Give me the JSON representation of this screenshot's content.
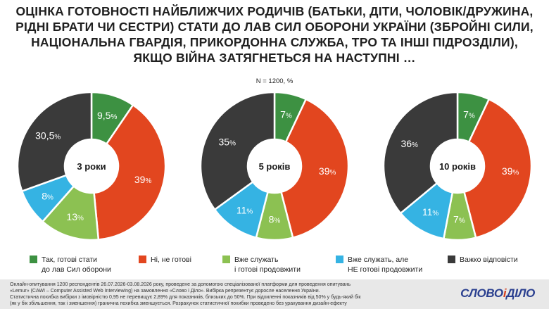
{
  "title_lines": [
    "ОЦІНКА ГОТОВНОСТІ НАЙБЛИЖЧИХ РОДИЧІВ (БАТЬКИ, ДІТИ, ЧОЛОВІК/ДРУЖИНА,",
    "РІДНІ БРАТИ ЧИ СЕСТРИ) СТАТИ ДО ЛАВ СИЛ ОБОРОНИ УКРАЇНИ (ЗБРОЙНІ СИЛИ,",
    "НАЦІОНАЛЬНА ГВАРДІЯ, ПРИКОРДОННА СЛУЖБА, ТРО ТА ІНШІ ПІДРОЗДІЛИ),",
    "ЯКЩО ВІЙНА ЗАТЯГНЕТЬСЯ НА НАСТУПНІ …"
  ],
  "sample_note": "N = 1200, %",
  "colors": {
    "ready": "#3d9142",
    "not_ready": "#e2461f",
    "serving_ready": "#8cc152",
    "serving_not_ready": "#35b3e3",
    "hard_to_say": "#3a3a3a"
  },
  "chart_data": [
    {
      "type": "pie",
      "style": "donut",
      "center_label": "3 роки",
      "series": [
        {
          "key": "ready",
          "value": 9.5,
          "label": "9,5"
        },
        {
          "key": "not_ready",
          "value": 39,
          "label": "39"
        },
        {
          "key": "serving_ready",
          "value": 13,
          "label": "13"
        },
        {
          "key": "serving_not_ready",
          "value": 8,
          "label": "8"
        },
        {
          "key": "hard_to_say",
          "value": 30.5,
          "label": "30,5"
        }
      ]
    },
    {
      "type": "pie",
      "style": "donut",
      "center_label": "5 років",
      "series": [
        {
          "key": "ready",
          "value": 7,
          "label": "7"
        },
        {
          "key": "not_ready",
          "value": 39,
          "label": "39"
        },
        {
          "key": "serving_ready",
          "value": 8,
          "label": "8"
        },
        {
          "key": "serving_not_ready",
          "value": 11,
          "label": "11"
        },
        {
          "key": "hard_to_say",
          "value": 35,
          "label": "35"
        }
      ]
    },
    {
      "type": "pie",
      "style": "donut",
      "center_label": "10 років",
      "series": [
        {
          "key": "ready",
          "value": 7,
          "label": "7"
        },
        {
          "key": "not_ready",
          "value": 39,
          "label": "39"
        },
        {
          "key": "serving_ready",
          "value": 7,
          "label": "7"
        },
        {
          "key": "serving_not_ready",
          "value": 11,
          "label": "11"
        },
        {
          "key": "hard_to_say",
          "value": 36,
          "label": "36"
        }
      ]
    }
  ],
  "percent_sign": "%",
  "legend": [
    {
      "key": "ready",
      "lines": [
        "Так, готові стати",
        "до лав Сил оборони"
      ]
    },
    {
      "key": "not_ready",
      "lines": [
        "Ні, не готові"
      ]
    },
    {
      "key": "serving_ready",
      "lines": [
        "Вже служать",
        "і готові продовжити"
      ]
    },
    {
      "key": "serving_not_ready",
      "lines": [
        "Вже служать, але",
        "НЕ готові продовжити"
      ]
    },
    {
      "key": "hard_to_say",
      "lines": [
        "Важко відповісти"
      ]
    }
  ],
  "footer_lines": [
    "Онлайн-опитування 1200 респондентів 26.07.2026-03.08.2026 року, проведене за допомогою спеціалізованої платформи для проведення опитувань",
    "«Lemur» (CAWI – Computer Assisted Web Interviewing) на замовлення «Слово і Діло». Вибірка репрезентує доросле населення України.",
    "Статистична похибка вибірки з імовірністю 0,95 не перевищує 2,89% для показників, близьких до 50%. При відхиленні показників від 50% у будь-який бік",
    "(як у бік збільшення, так і зменшення) гранична похибка зменшується. Розрахунок статистичної похибки проведено без урахування дизайн-ефекту"
  ],
  "logo": {
    "part1": "СЛОВО",
    "amp": "і",
    "part2": "ДІЛО"
  }
}
